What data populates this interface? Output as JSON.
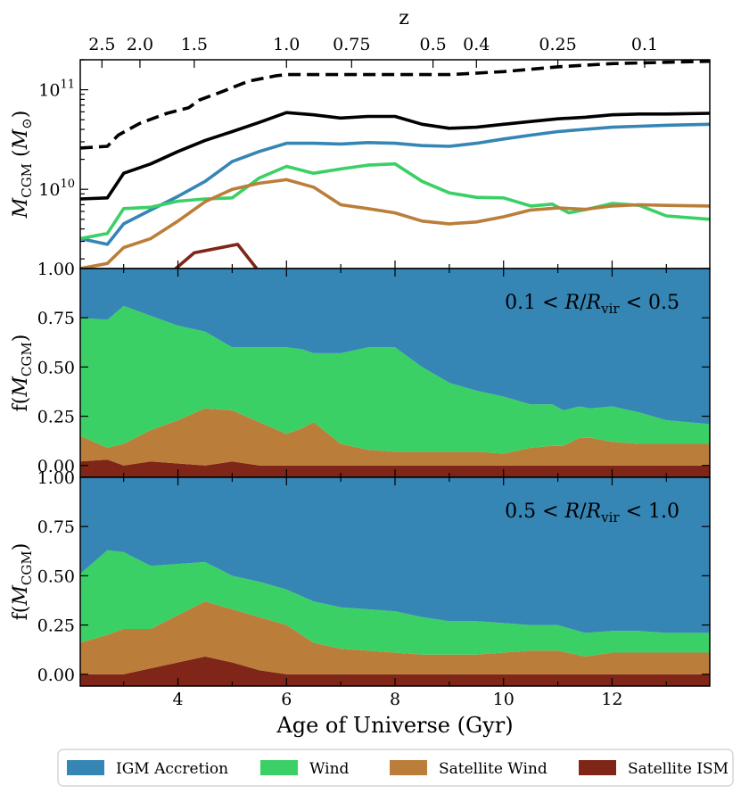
{
  "chart_data": [
    {
      "type": "line",
      "panel": "top",
      "xlabel": "",
      "ylabel": "M_CGM (M_⊙)",
      "ylabel_main": "M",
      "ylabel_sub": "CGM",
      "ylabel_unit_open": " (",
      "ylabel_unit_main": "M",
      "ylabel_unit_sub": "⊙",
      "ylabel_unit_close": ")",
      "yscale": "log",
      "xlim": [
        2.2,
        13.8
      ],
      "ylim": [
        1600000000.0,
        200000000000.0
      ],
      "ytick_labels": [
        {
          "value": 10000000000.0,
          "base": "10",
          "exp": "10"
        },
        {
          "value": 100000000000.0,
          "base": "10",
          "exp": "11"
        }
      ],
      "top_axis": {
        "label": "z",
        "ticks": [
          {
            "label": "2.5",
            "age": 2.6
          },
          {
            "label": "2.0",
            "age": 3.3
          },
          {
            "label": "1.5",
            "age": 4.3
          },
          {
            "label": "1.0",
            "age": 6.0
          },
          {
            "label": "0.75",
            "age": 7.2
          },
          {
            "label": "0.5",
            "age": 8.7
          },
          {
            "label": "0.4",
            "age": 9.5
          },
          {
            "label": "0.25",
            "age": 11.0
          },
          {
            "label": "0.1",
            "age": 12.6
          }
        ]
      },
      "series": [
        {
          "key": "dashed",
          "style": "dashed",
          "color": "#000000",
          "x": [
            2.2,
            2.7,
            2.9,
            3.3,
            3.8,
            4.2,
            4.4,
            4.8,
            5.3,
            5.8,
            6.0,
            7.0,
            8.0,
            9.0,
            10.0,
            11.0,
            12.0,
            13.8
          ],
          "y": [
            26000000000.0,
            27000000000.0,
            35000000000.0,
            46000000000.0,
            58000000000.0,
            66000000000.0,
            79000000000.0,
            95000000000.0,
            122000000000.0,
            138000000000.0,
            142000000000.0,
            142000000000.0,
            142000000000.0,
            142000000000.0,
            152000000000.0,
            170000000000.0,
            183000000000.0,
            193000000000.0
          ]
        },
        {
          "key": "total",
          "style": "solid",
          "color": "#000000",
          "x": [
            2.2,
            2.7,
            3.0,
            3.5,
            4.0,
            4.5,
            5.0,
            5.5,
            6.0,
            6.5,
            7.0,
            7.5,
            8.0,
            8.5,
            9.0,
            9.5,
            10.0,
            10.5,
            11.0,
            11.5,
            12.0,
            12.5,
            13.0,
            13.8
          ],
          "y": [
            8000000000.0,
            8200000000.0,
            14500000000.0,
            18000000000.0,
            24000000000.0,
            31000000000.0,
            38000000000.0,
            47000000000.0,
            59000000000.0,
            56000000000.0,
            52000000000.0,
            54000000000.0,
            54000000000.0,
            45000000000.0,
            41000000000.0,
            42000000000.0,
            45000000000.0,
            48000000000.0,
            51000000000.0,
            53000000000.0,
            56000000000.0,
            57000000000.0,
            57000000000.0,
            58000000000.0
          ]
        },
        {
          "key": "igm",
          "name": "IGM Accretion",
          "style": "solid",
          "color": "#3585b5",
          "x": [
            2.2,
            2.7,
            3.0,
            3.5,
            4.0,
            4.5,
            5.0,
            5.5,
            6.0,
            6.5,
            7.0,
            7.5,
            8.0,
            8.5,
            9.0,
            9.5,
            10.0,
            10.5,
            11.0,
            11.5,
            12.0,
            12.5,
            13.0,
            13.8
          ],
          "y": [
            3200000000.0,
            2800000000.0,
            4500000000.0,
            6200000000.0,
            8500000000.0,
            12000000000.0,
            19000000000.0,
            24000000000.0,
            29000000000.0,
            29000000000.0,
            28500000000.0,
            29500000000.0,
            29000000000.0,
            27500000000.0,
            27000000000.0,
            29000000000.0,
            32000000000.0,
            35000000000.0,
            38000000000.0,
            40000000000.0,
            42000000000.0,
            43000000000.0,
            44000000000.0,
            45000000000.0
          ]
        },
        {
          "key": "wind",
          "name": "Wind",
          "style": "solid",
          "color": "#3ad066",
          "x": [
            2.2,
            2.7,
            3.0,
            3.5,
            4.0,
            4.5,
            5.0,
            5.5,
            6.0,
            6.5,
            7.0,
            7.5,
            8.0,
            8.5,
            9.0,
            9.5,
            10.0,
            10.5,
            10.9,
            11.2,
            11.6,
            12.0,
            12.5,
            13.0,
            13.8
          ],
          "y": [
            3200000000.0,
            3600000000.0,
            6400000000.0,
            6600000000.0,
            7600000000.0,
            8000000000.0,
            8200000000.0,
            13000000000.0,
            17000000000.0,
            14500000000.0,
            16000000000.0,
            17500000000.0,
            18000000000.0,
            12000000000.0,
            9200000000.0,
            8300000000.0,
            8200000000.0,
            6800000000.0,
            7100000000.0,
            5800000000.0,
            6400000000.0,
            7200000000.0,
            6900000000.0,
            5400000000.0,
            5000000000.0
          ]
        },
        {
          "key": "satwind",
          "name": "Satellite Wind",
          "style": "solid",
          "color": "#bb7e3a",
          "x": [
            2.2,
            2.7,
            3.0,
            3.5,
            4.0,
            4.5,
            5.0,
            5.5,
            6.0,
            6.5,
            7.0,
            7.5,
            8.0,
            8.5,
            9.0,
            9.5,
            10.0,
            10.5,
            11.0,
            11.5,
            12.0,
            12.5,
            13.0,
            13.8
          ],
          "y": [
            1600000000.0,
            1800000000.0,
            2600000000.0,
            3200000000.0,
            4800000000.0,
            7500000000.0,
            10000000000.0,
            11500000000.0,
            12500000000.0,
            10500000000.0,
            7000000000.0,
            6400000000.0,
            5800000000.0,
            4800000000.0,
            4500000000.0,
            4700000000.0,
            5300000000.0,
            6200000000.0,
            6500000000.0,
            6300000000.0,
            6800000000.0,
            7000000000.0,
            6900000000.0,
            6800000000.0
          ]
        },
        {
          "key": "satism",
          "name": "Satellite ISM",
          "style": "solid",
          "color": "#7f2618",
          "x": [
            3.9,
            4.3,
            5.1,
            5.45
          ],
          "y": [
            1500000000.0,
            2300000000.0,
            2800000000.0,
            1600000000.0
          ]
        }
      ]
    },
    {
      "type": "area",
      "panel": "middle",
      "stacked": true,
      "ylabel": "f(M_CGM)",
      "ylabel_open": "f(",
      "ylabel_main": "M",
      "ylabel_sub": "CGM",
      "ylabel_close": ")",
      "annotation": {
        "pre": "0.1 < ",
        "R": "R",
        "slash": "/",
        "Rv": "R",
        "vir": "vir",
        "post": " < 0.5"
      },
      "xlim": [
        2.2,
        13.8
      ],
      "ylim": [
        -0.06,
        1.0
      ],
      "ytick_labels": [
        "0.00",
        "0.25",
        "0.50",
        "0.75",
        "1.00"
      ],
      "ytick_values": [
        0,
        0.25,
        0.5,
        0.75,
        1.0
      ],
      "x": [
        2.2,
        2.7,
        3.0,
        3.5,
        4.0,
        4.5,
        5.0,
        5.5,
        6.0,
        6.3,
        6.5,
        7.0,
        7.5,
        8.0,
        8.5,
        9.0,
        9.5,
        10.0,
        10.5,
        10.9,
        11.1,
        11.4,
        11.6,
        12.0,
        12.5,
        13.0,
        13.8
      ],
      "layers": [
        {
          "key": "satism",
          "name": "Satellite ISM",
          "color": "#7f2618",
          "top": [
            0.02,
            0.03,
            0.0,
            0.02,
            0.01,
            0.0,
            0.02,
            0.0,
            0.0,
            0.0,
            0.0,
            0.0,
            0.0,
            0.0,
            0.0,
            0.0,
            0.0,
            0.0,
            0.0,
            0.0,
            0.0,
            0.0,
            0.0,
            0.0,
            0.0,
            0.0,
            0.0
          ]
        },
        {
          "key": "satwind",
          "name": "Satellite Wind",
          "color": "#bb7e3a",
          "top": [
            0.15,
            0.09,
            0.11,
            0.18,
            0.23,
            0.29,
            0.28,
            0.22,
            0.16,
            0.19,
            0.22,
            0.11,
            0.08,
            0.07,
            0.07,
            0.07,
            0.07,
            0.06,
            0.09,
            0.1,
            0.1,
            0.14,
            0.14,
            0.12,
            0.11,
            0.11,
            0.11
          ]
        },
        {
          "key": "wind",
          "name": "Wind",
          "color": "#3ad066",
          "top": [
            0.75,
            0.74,
            0.81,
            0.76,
            0.71,
            0.68,
            0.6,
            0.6,
            0.6,
            0.59,
            0.57,
            0.57,
            0.6,
            0.6,
            0.5,
            0.42,
            0.38,
            0.35,
            0.31,
            0.31,
            0.28,
            0.3,
            0.29,
            0.3,
            0.27,
            0.23,
            0.21
          ]
        },
        {
          "key": "igm",
          "name": "IGM Accretion",
          "color": "#3585b5",
          "top": [
            1.0,
            1.0,
            1.0,
            1.0,
            1.0,
            1.0,
            1.0,
            1.0,
            1.0,
            1.0,
            1.0,
            1.0,
            1.0,
            1.0,
            1.0,
            1.0,
            1.0,
            1.0,
            1.0,
            1.0,
            1.0,
            1.0,
            1.0,
            1.0,
            1.0,
            1.0,
            1.0
          ]
        }
      ]
    },
    {
      "type": "area",
      "panel": "bottom",
      "stacked": true,
      "ylabel": "f(M_CGM)",
      "ylabel_open": "f(",
      "ylabel_main": "M",
      "ylabel_sub": "CGM",
      "ylabel_close": ")",
      "xlabel": "Age of Universe (Gyr)",
      "annotation": {
        "pre": "0.5 < ",
        "R": "R",
        "slash": "/",
        "Rv": "R",
        "vir": "vir",
        "post": " < 1.0"
      },
      "xlim": [
        2.2,
        13.8
      ],
      "ylim": [
        -0.06,
        1.0
      ],
      "ytick_labels": [
        "0.00",
        "0.25",
        "0.50",
        "0.75",
        "1.00"
      ],
      "ytick_values": [
        0,
        0.25,
        0.5,
        0.75,
        1.0
      ],
      "xtick_labels": [
        "4",
        "6",
        "8",
        "10",
        "12"
      ],
      "xtick_values": [
        4,
        6,
        8,
        10,
        12
      ],
      "x": [
        2.2,
        2.7,
        3.0,
        3.5,
        4.0,
        4.5,
        5.0,
        5.5,
        6.0,
        6.5,
        7.0,
        7.5,
        8.0,
        8.5,
        9.0,
        9.5,
        10.0,
        10.5,
        11.0,
        11.5,
        12.0,
        12.5,
        13.0,
        13.8
      ],
      "layers": [
        {
          "key": "satism",
          "name": "Satellite ISM",
          "color": "#7f2618",
          "top": [
            0.0,
            0.0,
            0.0,
            0.03,
            0.06,
            0.09,
            0.06,
            0.02,
            0.0,
            0.0,
            0.0,
            0.0,
            0.0,
            0.0,
            0.0,
            0.0,
            0.0,
            0.0,
            0.0,
            0.0,
            0.0,
            0.0,
            0.0,
            0.0
          ]
        },
        {
          "key": "satwind",
          "name": "Satellite Wind",
          "color": "#bb7e3a",
          "top": [
            0.16,
            0.2,
            0.23,
            0.23,
            0.3,
            0.37,
            0.33,
            0.29,
            0.25,
            0.16,
            0.13,
            0.12,
            0.11,
            0.1,
            0.1,
            0.1,
            0.11,
            0.12,
            0.12,
            0.09,
            0.11,
            0.11,
            0.11,
            0.11
          ]
        },
        {
          "key": "wind",
          "name": "Wind",
          "color": "#3ad066",
          "top": [
            0.51,
            0.63,
            0.62,
            0.55,
            0.56,
            0.57,
            0.5,
            0.47,
            0.43,
            0.37,
            0.34,
            0.33,
            0.32,
            0.29,
            0.27,
            0.27,
            0.26,
            0.25,
            0.25,
            0.21,
            0.22,
            0.22,
            0.21,
            0.21
          ]
        },
        {
          "key": "igm",
          "name": "IGM Accretion",
          "color": "#3585b5",
          "top": [
            1.0,
            1.0,
            1.0,
            1.0,
            1.0,
            1.0,
            1.0,
            1.0,
            1.0,
            1.0,
            1.0,
            1.0,
            1.0,
            1.0,
            1.0,
            1.0,
            1.0,
            1.0,
            1.0,
            1.0,
            1.0,
            1.0,
            1.0,
            1.0
          ]
        }
      ]
    }
  ],
  "legend": {
    "placement": "bottom",
    "items": [
      {
        "label": "IGM Accretion",
        "color": "#3585b5"
      },
      {
        "label": "Wind",
        "color": "#3ad066"
      },
      {
        "label": "Satellite Wind",
        "color": "#bb7e3a"
      },
      {
        "label": "Satellite ISM",
        "color": "#7f2618"
      }
    ]
  }
}
